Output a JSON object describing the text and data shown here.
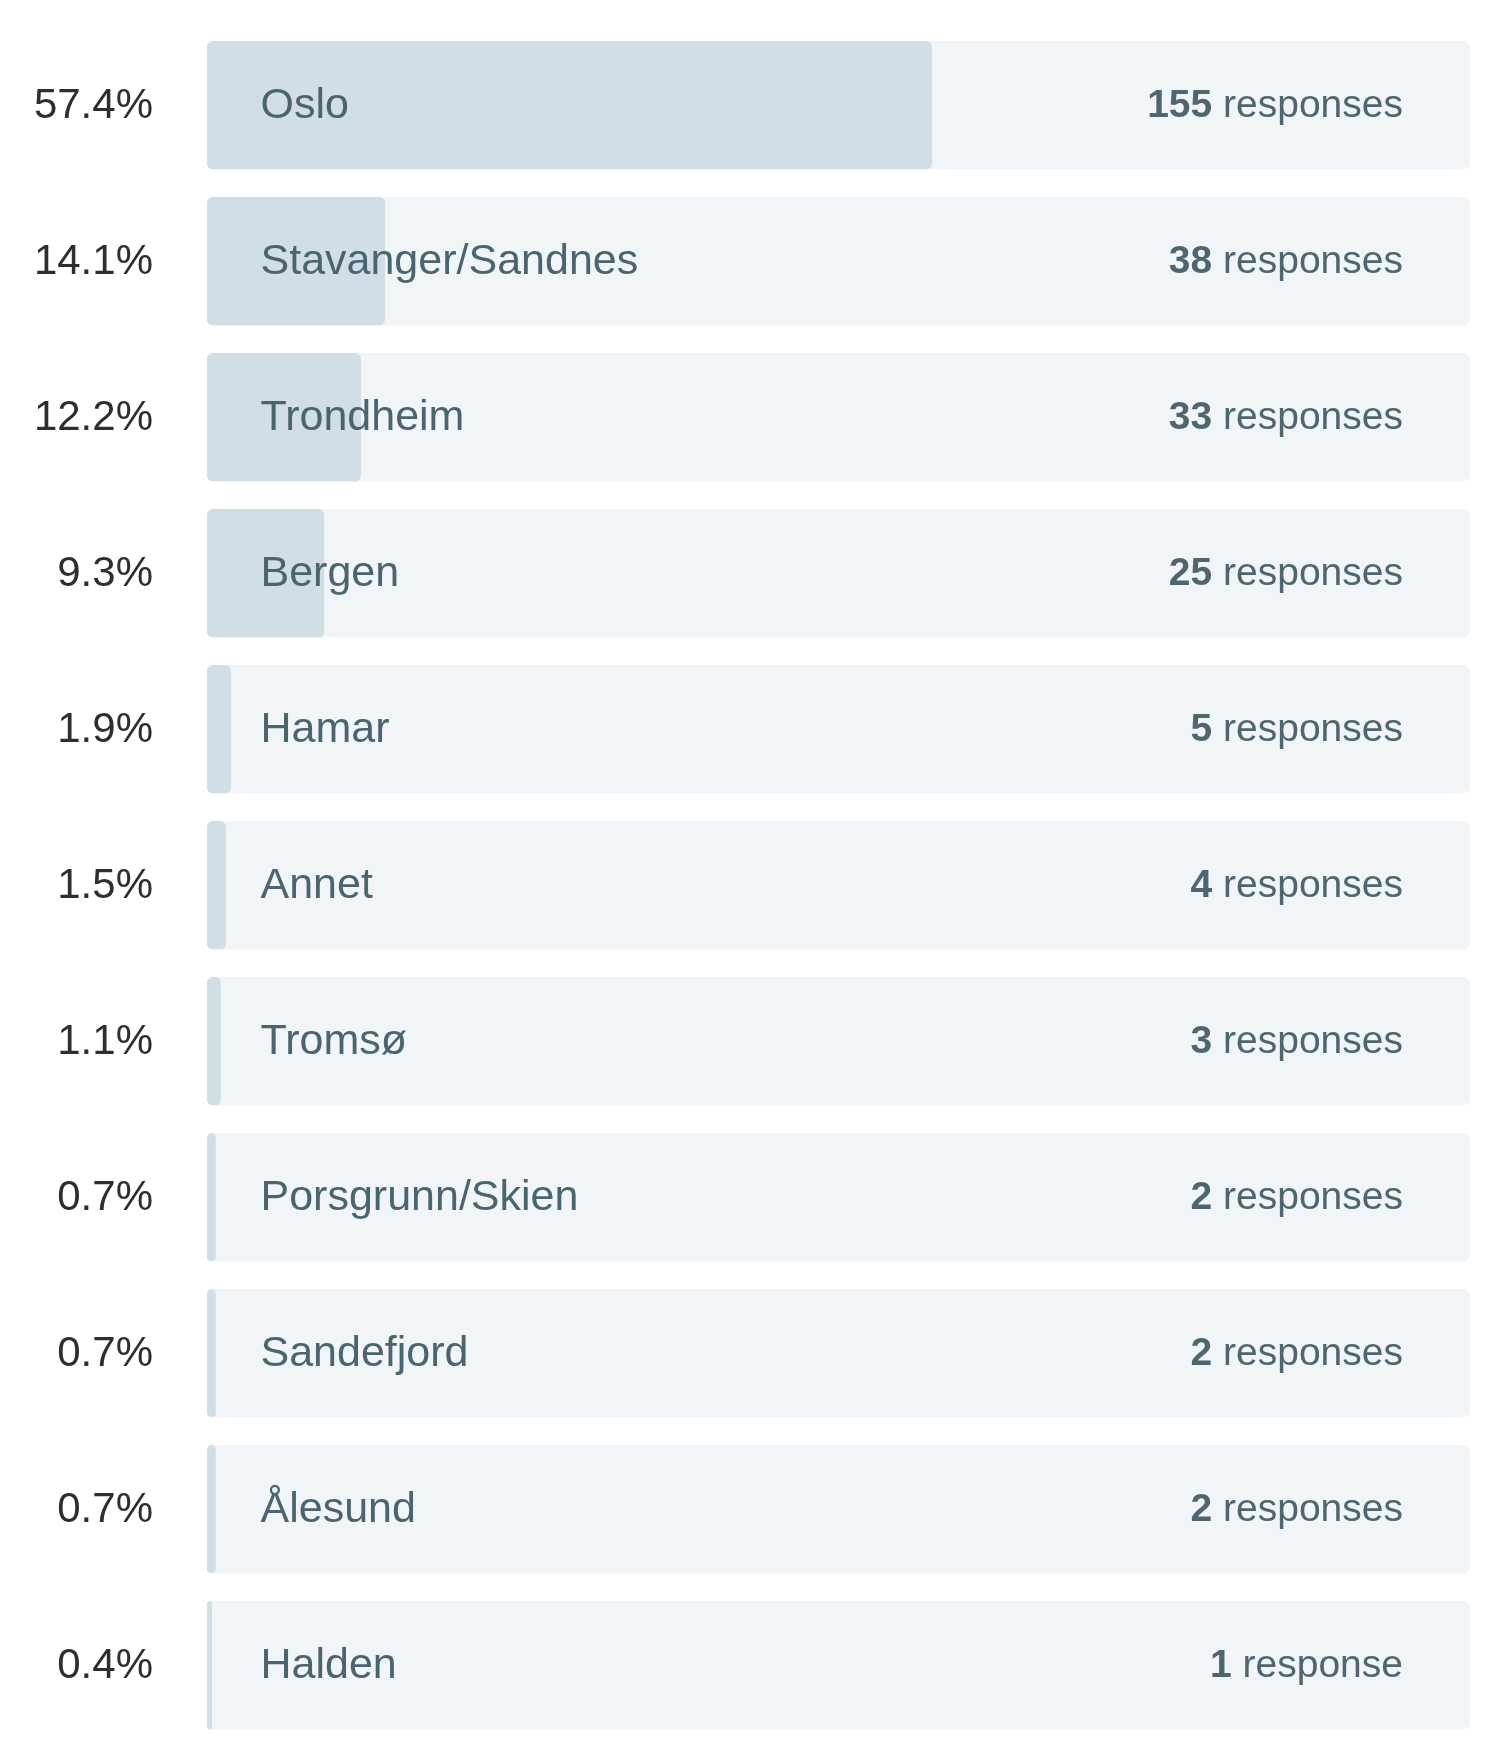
{
  "chart_data": {
    "type": "bar",
    "orientation": "horizontal",
    "categories": [
      "Oslo",
      "Stavanger/Sandnes",
      "Trondheim",
      "Bergen",
      "Hamar",
      "Annet",
      "Tromsø",
      "Porsgrunn/Skien",
      "Sandefjord",
      "Ålesund",
      "Halden"
    ],
    "values": [
      57.4,
      14.1,
      12.2,
      9.3,
      1.9,
      1.5,
      1.1,
      0.7,
      0.7,
      0.7,
      0.4
    ],
    "value_labels": [
      "57.4%",
      "14.1%",
      "12.2%",
      "9.3%",
      "1.9%",
      "1.5%",
      "1.1%",
      "0.7%",
      "0.7%",
      "0.7%",
      "0.4%"
    ],
    "color": "#d1dee5",
    "xlim": [
      0,
      100
    ],
    "tick_labels": "y",
    "annotations": [
      "155 responses",
      "38 responses",
      "33 responses",
      "25 responses",
      "5 responses",
      "4 responses",
      "3 responses",
      "2 responses",
      "2 responses",
      "2 responses",
      "1 response"
    ]
  }
}
